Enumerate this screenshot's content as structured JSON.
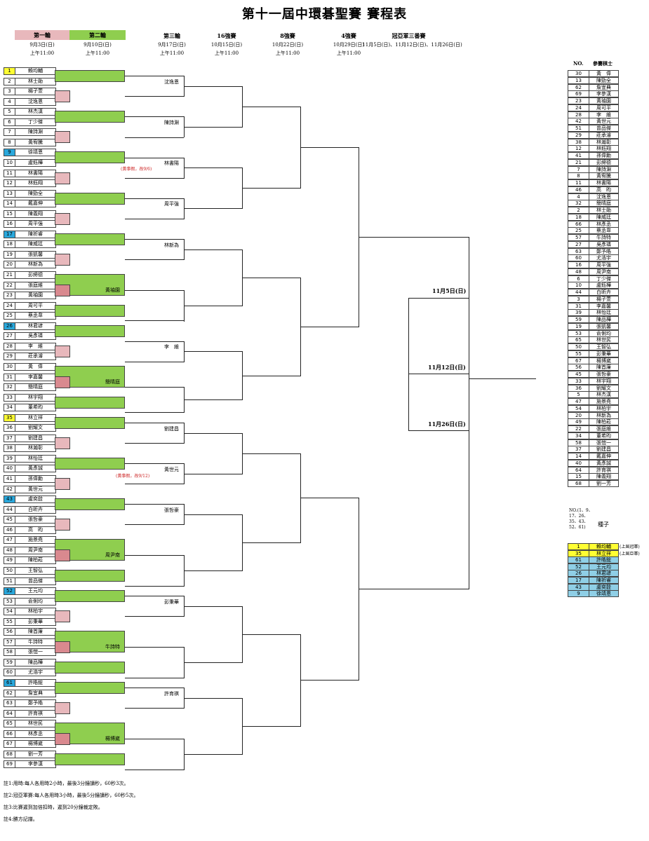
{
  "title": "第十一屆中環碁聖賽 賽程表",
  "rounds": [
    {
      "name": "第一輪",
      "date": "9月3日(日)",
      "time": "上午11:00"
    },
    {
      "name": "第二輪",
      "date": "9月10日(日)",
      "time": "上午11:00"
    },
    {
      "name": "第三輪",
      "date": "9月17日(日)",
      "time": "上午11:00"
    },
    {
      "name": "16強賽",
      "date": "10月15日(日)",
      "time": "上午11:00"
    },
    {
      "name": "8強賽",
      "date": "10月22日(日)",
      "time": "上午11:00"
    },
    {
      "name": "4強賽",
      "date": "10月29日(日)",
      "time": "上午11:00"
    },
    {
      "name": "冠亞軍三番賽",
      "date": "11月5日(日)、11月12日(日)、11月26日(日)",
      "time": ""
    }
  ],
  "colors": {
    "round1": "#e8b8bc",
    "round2": "#8fce4f",
    "seed_yellow": "#ffff33",
    "seed_blue": "#2aa8dc",
    "list_blue": "#8fcfe6"
  },
  "players": [
    {
      "no": "1",
      "name": "賴均輔",
      "hl": "yellow"
    },
    {
      "no": "2",
      "name": "林士勛",
      "hl": ""
    },
    {
      "no": "3",
      "name": "楊子萱",
      "hl": ""
    },
    {
      "no": "4",
      "name": "沈逸恩",
      "hl": ""
    },
    {
      "no": "5",
      "name": "林杰漢",
      "hl": ""
    },
    {
      "no": "6",
      "name": "丁少傑",
      "hl": ""
    },
    {
      "no": "7",
      "name": "陳詩淵",
      "hl": ""
    },
    {
      "no": "8",
      "name": "黃宥騰",
      "hl": ""
    },
    {
      "no": "9",
      "name": "徐靖恩",
      "hl": "blue"
    },
    {
      "no": "10",
      "name": "盧鈺樺",
      "hl": ""
    },
    {
      "no": "11",
      "name": "林書陽",
      "hl": ""
    },
    {
      "no": "12",
      "name": "林鈺翔",
      "hl": ""
    },
    {
      "no": "13",
      "name": "陳勁全",
      "hl": ""
    },
    {
      "no": "14",
      "name": "戴嘉伸",
      "hl": ""
    },
    {
      "no": "15",
      "name": "陳義翔",
      "hl": ""
    },
    {
      "no": "16",
      "name": "周平強",
      "hl": ""
    },
    {
      "no": "17",
      "name": "陳祈睿",
      "hl": "blue"
    },
    {
      "no": "18",
      "name": "陳威廷",
      "hl": ""
    },
    {
      "no": "19",
      "name": "張凱馨",
      "hl": ""
    },
    {
      "no": "20",
      "name": "林新為",
      "hl": ""
    },
    {
      "no": "21",
      "name": "彭締德",
      "hl": ""
    },
    {
      "no": "22",
      "name": "張庭維",
      "hl": ""
    },
    {
      "no": "23",
      "name": "黃袖園",
      "hl": ""
    },
    {
      "no": "24",
      "name": "周可平",
      "hl": ""
    },
    {
      "no": "25",
      "name": "蔡丞韋",
      "hl": ""
    },
    {
      "no": "26",
      "name": "林君諺",
      "hl": "blue"
    },
    {
      "no": "27",
      "name": "吳彥璘",
      "hl": ""
    },
    {
      "no": "28",
      "name": "李　維",
      "hl": ""
    },
    {
      "no": "29",
      "name": "莊承濬",
      "hl": ""
    },
    {
      "no": "30",
      "name": "黃　偉",
      "hl": ""
    },
    {
      "no": "31",
      "name": "李嘉馨",
      "hl": ""
    },
    {
      "no": "32",
      "name": "簡晴庭",
      "hl": ""
    },
    {
      "no": "33",
      "name": "林宇翔",
      "hl": ""
    },
    {
      "no": "34",
      "name": "董希昀",
      "hl": ""
    },
    {
      "no": "35",
      "name": "林立祥",
      "hl": "yellow"
    },
    {
      "no": "36",
      "name": "劉耀文",
      "hl": ""
    },
    {
      "no": "37",
      "name": "劉建昌",
      "hl": ""
    },
    {
      "no": "38",
      "name": "林瀚彰",
      "hl": ""
    },
    {
      "no": "39",
      "name": "林怡廷",
      "hl": ""
    },
    {
      "no": "40",
      "name": "黃彥誠",
      "hl": ""
    },
    {
      "no": "41",
      "name": "孫偉勳",
      "hl": ""
    },
    {
      "no": "42",
      "name": "黃世元",
      "hl": ""
    },
    {
      "no": "43",
      "name": "盧奕銓",
      "hl": "blue"
    },
    {
      "no": "44",
      "name": "白昕卉",
      "hl": ""
    },
    {
      "no": "45",
      "name": "張哲豪",
      "hl": ""
    },
    {
      "no": "46",
      "name": "高　昀",
      "hl": ""
    },
    {
      "no": "47",
      "name": "施景堯",
      "hl": ""
    },
    {
      "no": "48",
      "name": "周尹南",
      "hl": ""
    },
    {
      "no": "49",
      "name": "陳柏菘",
      "hl": ""
    },
    {
      "no": "50",
      "name": "王智弘",
      "hl": ""
    },
    {
      "no": "51",
      "name": "曾品傑",
      "hl": ""
    },
    {
      "no": "52",
      "name": "王元均",
      "hl": "blue"
    },
    {
      "no": "53",
      "name": "俞俐均",
      "hl": ""
    },
    {
      "no": "54",
      "name": "林柏宇",
      "hl": ""
    },
    {
      "no": "55",
      "name": "彭秉華",
      "hl": ""
    },
    {
      "no": "56",
      "name": "陳首廉",
      "hl": ""
    },
    {
      "no": "57",
      "name": "牛詩特",
      "hl": ""
    },
    {
      "no": "58",
      "name": "張愷一",
      "hl": ""
    },
    {
      "no": "59",
      "name": "陳品樺",
      "hl": ""
    },
    {
      "no": "60",
      "name": "尤浩宇",
      "hl": ""
    },
    {
      "no": "61",
      "name": "許皓鋐",
      "hl": "blue"
    },
    {
      "no": "62",
      "name": "詹宜典",
      "hl": ""
    },
    {
      "no": "63",
      "name": "鄭予皓",
      "hl": ""
    },
    {
      "no": "64",
      "name": "許育祺",
      "hl": ""
    },
    {
      "no": "65",
      "name": "林世民",
      "hl": ""
    },
    {
      "no": "66",
      "name": "林彥丞",
      "hl": ""
    },
    {
      "no": "67",
      "name": "楊博崴",
      "hl": ""
    },
    {
      "no": "68",
      "name": "劉一芳",
      "hl": ""
    },
    {
      "no": "69",
      "name": "李參漢",
      "hl": ""
    }
  ],
  "round2_winners": [
    {
      "name": "黃袖園"
    },
    {
      "name": "簡晴庭"
    },
    {
      "name": "周尹南"
    },
    {
      "name": "牛詩特"
    },
    {
      "name": "楊博崴"
    }
  ],
  "round3_winners": [
    {
      "name": "沈逸恩"
    },
    {
      "name": "陳詩淵"
    },
    {
      "name": "林書陽"
    },
    {
      "name": "周平強"
    },
    {
      "name": "林新為"
    },
    {
      "name": "李　維"
    },
    {
      "name": "劉建昌"
    },
    {
      "name": "黃世元"
    },
    {
      "name": "張哲豪"
    },
    {
      "name": "彭秉華"
    },
    {
      "name": "許育祺"
    }
  ],
  "notes": [
    {
      "text": "(黃事假，改9/6)"
    },
    {
      "text": "(黃事假，改9/12)"
    }
  ],
  "final_dates": [
    {
      "text": "11月5日(日)"
    },
    {
      "text": "11月12日(日)"
    },
    {
      "text": "11月26日(日)"
    }
  ],
  "roster": {
    "header_no": "NO.",
    "header_name": "參賽棋士",
    "rows": [
      [
        "30",
        "黃　偉"
      ],
      [
        "13",
        "陳勁全"
      ],
      [
        "62",
        "詹宜典"
      ],
      [
        "69",
        "李參漢"
      ],
      [
        "23",
        "黃袖園"
      ],
      [
        "24",
        "周可平"
      ],
      [
        "28",
        "李　維"
      ],
      [
        "42",
        "黃世元"
      ],
      [
        "51",
        "曾品傑"
      ],
      [
        "29",
        "莊承濬"
      ],
      [
        "38",
        "林瀚彰"
      ],
      [
        "12",
        "林鈺翔"
      ],
      [
        "41",
        "孫偉勳"
      ],
      [
        "21",
        "彭締德"
      ],
      [
        "7",
        "陳詩淵"
      ],
      [
        "8",
        "黃宥騰"
      ],
      [
        "11",
        "林書陽"
      ],
      [
        "46",
        "高　昀"
      ],
      [
        "4",
        "沈逸恩"
      ],
      [
        "32",
        "簡晴庭"
      ],
      [
        "2",
        "林士勛"
      ],
      [
        "18",
        "陳威廷"
      ],
      [
        "66",
        "林彥丞"
      ],
      [
        "25",
        "蔡丞韋"
      ],
      [
        "57",
        "牛詩特"
      ],
      [
        "27",
        "吳彥璘"
      ],
      [
        "63",
        "鄭予皓"
      ],
      [
        "60",
        "尤浩宇"
      ],
      [
        "16",
        "周平強"
      ],
      [
        "48",
        "周尹南"
      ],
      [
        "6",
        "丁少傑"
      ],
      [
        "10",
        "盧鈺樺"
      ],
      [
        "44",
        "白昕卉"
      ],
      [
        "3",
        "楊子萱"
      ],
      [
        "31",
        "李嘉馨"
      ],
      [
        "39",
        "林怡廷"
      ],
      [
        "59",
        "陳品樺"
      ],
      [
        "19",
        "張凱馨"
      ],
      [
        "53",
        "俞俐均"
      ],
      [
        "65",
        "林世民"
      ],
      [
        "50",
        "王智弘"
      ],
      [
        "55",
        "彭秉華"
      ],
      [
        "67",
        "楊博崴"
      ],
      [
        "56",
        "陳首廉"
      ],
      [
        "45",
        "張哲豪"
      ],
      [
        "33",
        "林宇翔"
      ],
      [
        "36",
        "劉耀文"
      ],
      [
        "5",
        "林杰漢"
      ],
      [
        "47",
        "施景堯"
      ],
      [
        "54",
        "林柏宇"
      ],
      [
        "20",
        "林新為"
      ],
      [
        "49",
        "陳柏菘"
      ],
      [
        "22",
        "張庭維"
      ],
      [
        "34",
        "董希昀"
      ],
      [
        "58",
        "張愷一"
      ],
      [
        "37",
        "劉建昌"
      ],
      [
        "14",
        "戴嘉伸"
      ],
      [
        "40",
        "黃彥誠"
      ],
      [
        "64",
        "許育祺"
      ],
      [
        "15",
        "陳義翔"
      ],
      [
        "68",
        "劉一芳"
      ]
    ]
  },
  "seed_note": {
    "nums": "NO.(1、9、17、26、35、43、52、61)",
    "label": "種子"
  },
  "seeds": [
    {
      "no": "1",
      "name": "賴均輔",
      "note": "(上屆冠軍)",
      "hl": "yellow"
    },
    {
      "no": "35",
      "name": "林立祥",
      "note": "(上屆亞軍)",
      "hl": "yellow"
    },
    {
      "no": "61",
      "name": "許皓鋐",
      "note": "",
      "hl": "lightblue"
    },
    {
      "no": "52",
      "name": "王元均",
      "note": "",
      "hl": "lightblue"
    },
    {
      "no": "26",
      "name": "林君諺",
      "note": "",
      "hl": "lightblue"
    },
    {
      "no": "17",
      "name": "陳祈睿",
      "note": "",
      "hl": "lightblue"
    },
    {
      "no": "43",
      "name": "盧奕銓",
      "note": "",
      "hl": "lightblue"
    },
    {
      "no": "9",
      "name": "徐靖恩",
      "note": "",
      "hl": "lightblue"
    }
  ],
  "footnotes": [
    "註1:用時:每人各用時2小時，最後3分鐘讀秒，60秒3次。",
    "註2:冠亞軍賽:每人各用時3小時，最後5分鐘讀秒，60秒5次。",
    "註3:比賽遲到加倍扣時，遲到20分鐘裁定敗。",
    "註4:勝方記譜。"
  ]
}
